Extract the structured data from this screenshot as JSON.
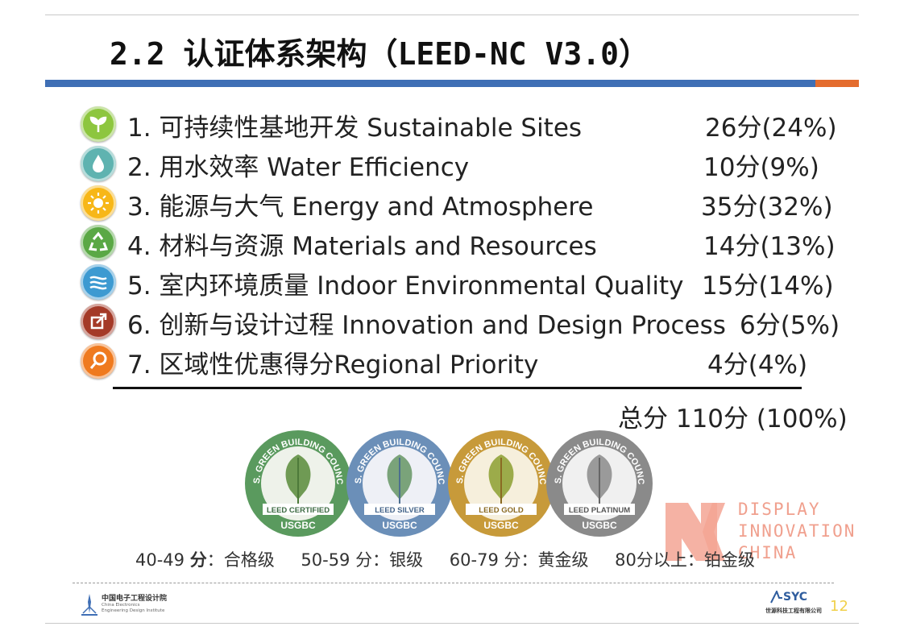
{
  "slide": {
    "title": "2.2 认证体系架构（LEED-NC V3.0）",
    "page_number": "12"
  },
  "categories": [
    {
      "label": "1. 可持续性基地开发 Sustainable Sites",
      "score": "26分(24%)",
      "icon": "sprout-icon",
      "color": "#8dc63f"
    },
    {
      "label": "2. 用水效率 Water Efficiency",
      "score": "10分(9%)",
      "icon": "water-drop-icon",
      "color": "#5fb3b0"
    },
    {
      "label": "3. 能源与大气 Energy and Atmosphere",
      "score": "35分(32%)",
      "icon": "sun-icon",
      "color": "#f7b718"
    },
    {
      "label": "4. 材料与资源 Materials and Resources",
      "score": "14分(13%)",
      "icon": "recycle-icon",
      "color": "#5aa845"
    },
    {
      "label": "5. 室内环境质量 Indoor Environmental Quality",
      "score": "15分(14%)",
      "icon": "air-flow-icon",
      "color": "#3d9ad1"
    },
    {
      "label": "6. 创新与设计过程 Innovation and Design Process",
      "score": "6分(5%)",
      "icon": "external-arrow-icon",
      "color": "#a43a28"
    },
    {
      "label": "7. 区域性优惠得分Regional Priority",
      "score": "4分(4%)",
      "icon": "magnifier-icon",
      "color": "#ef7a1f"
    }
  ],
  "total": "总分 110分 (100%)",
  "seals": [
    {
      "arc_text": "U.S. GREEN BUILDING COUNCIL",
      "level": "LEED CERTIFIED",
      "org": "USGBC",
      "color": "#5a9a5e"
    },
    {
      "arc_text": "U.S. GREEN BUILDING COUNCIL",
      "level": "LEED SILVER",
      "org": "USGBC",
      "color": "#6b8fb8"
    },
    {
      "arc_text": "U.S. GREEN BUILDING COUNCIL",
      "level": "LEED GOLD",
      "org": "USGBC",
      "color": "#c79a3a"
    },
    {
      "arc_text": "U.S. GREEN BUILDING COUNCIL",
      "level": "LEED PLATINUM",
      "org": "USGBC",
      "color": "#8a8a8a"
    }
  ],
  "levels": [
    {
      "range": "40-49 ",
      "bold": "分",
      "rest": "：合格级"
    },
    {
      "range": "50-59 分",
      "bold": "",
      "rest": "：银级"
    },
    {
      "range": "60-79 分",
      "bold": "",
      "rest": "：黄金级"
    },
    {
      "range": "80分以上",
      "bold": "",
      "rest": "：铂金级"
    }
  ],
  "watermark": {
    "line1": "DISPLAY",
    "line2": "INNOVATION",
    "line3": "CHINA"
  },
  "footer": {
    "left_logo_text": "中国电子工程设计院",
    "left_logo_sub1": "China Electronics",
    "left_logo_sub2": "Engineering Design Institute",
    "right_logo_text": "SYC",
    "right_logo_sub": "世源科技工程有限公司"
  }
}
